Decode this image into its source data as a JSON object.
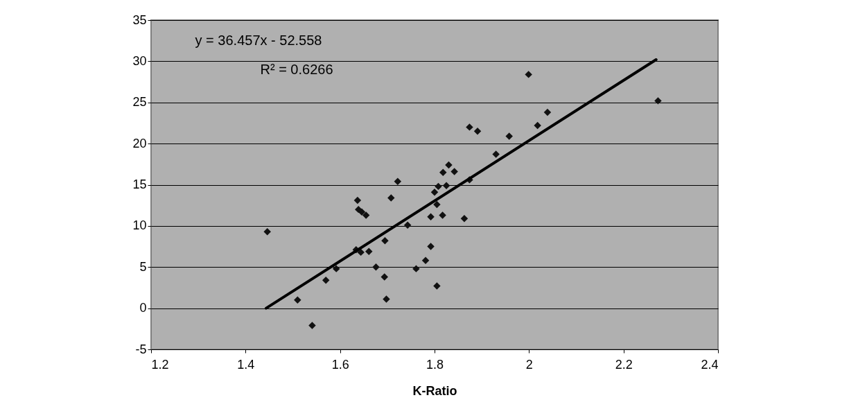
{
  "chart_data": {
    "type": "scatter",
    "xlabel": "K-Ratio",
    "annotations": [
      "y = 36.457x - 52.558",
      "R² = 0.6266"
    ],
    "xlim": [
      1.2,
      2.4
    ],
    "xticks": [
      1.2,
      1.4,
      1.6,
      1.8,
      2,
      2.2,
      2.4
    ],
    "ylim": [
      -5,
      35
    ],
    "yticks": [
      -5,
      0,
      5,
      10,
      15,
      20,
      25,
      30,
      35
    ],
    "grid": "y",
    "legend": false,
    "marker": "diamond",
    "series": [
      {
        "color": "#111111",
        "x": [
          1.446,
          1.51,
          1.541,
          1.57,
          1.592,
          1.637,
          1.639,
          1.646,
          1.655,
          1.634,
          1.644,
          1.661,
          1.708,
          1.722,
          1.695,
          1.676,
          1.694,
          1.698,
          1.743,
          1.761,
          1.781,
          1.792,
          1.805,
          1.792,
          1.817,
          1.863,
          1.805,
          1.8,
          1.999,
          2.273,
          2.039,
          2.018,
          1.874,
          1.891,
          1.958,
          1.93,
          1.874,
          1.83,
          1.842,
          1.818,
          1.825,
          1.808
        ],
        "values": [
          9.3,
          1.0,
          -2.1,
          3.4,
          4.8,
          13.1,
          12.0,
          11.7,
          11.3,
          7.1,
          6.8,
          6.9,
          13.4,
          15.4,
          8.2,
          5.0,
          3.8,
          1.1,
          10.1,
          4.8,
          5.8,
          7.5,
          2.7,
          11.1,
          11.3,
          10.9,
          12.6,
          14.1,
          28.4,
          25.2,
          23.8,
          22.2,
          22.0,
          21.5,
          20.9,
          18.7,
          15.6,
          17.4,
          16.6,
          16.5,
          14.9,
          14.8
        ]
      },
      {
        "type": "line",
        "marker": "none",
        "color": "#000000",
        "x": [
          1.4435,
          2.269
        ],
        "values": [
          0,
          30.2
        ]
      }
    ]
  }
}
